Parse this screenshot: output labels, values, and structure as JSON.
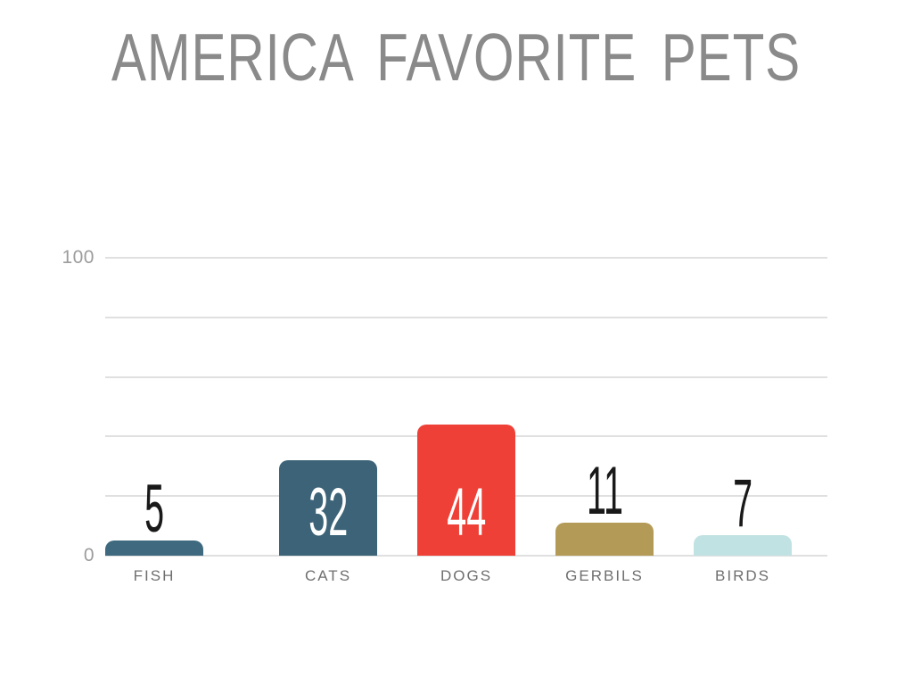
{
  "title": {
    "text": "AMERICA FAVORITE PETS",
    "color": "#8a8a8a"
  },
  "axis": {
    "top_label": "100",
    "bottom_label": "0"
  },
  "chart_data": {
    "type": "bar",
    "title": "AMERICA FAVORITE PETS",
    "categories": [
      "CATS",
      "DOGS",
      "GERBILS",
      "BIRDS",
      "FISH"
    ],
    "values": [
      32,
      44,
      11,
      7,
      5
    ],
    "bar_colors": [
      "#3c6377",
      "#ee4036",
      "#b49a57",
      "#c1e2e3",
      "#3e697e"
    ],
    "value_label_positions": [
      "inside",
      "inside",
      "above",
      "above",
      "above"
    ],
    "value_label_colors": [
      "#ffffff",
      "#ffffff",
      "#191919",
      "#191919",
      "#191919"
    ],
    "xlabel": "",
    "ylabel": "",
    "ylim": [
      0,
      100
    ],
    "gridlines": [
      0,
      20,
      40,
      60,
      80,
      100
    ],
    "ytick_labels": [
      "0",
      "100"
    ],
    "legend": "none",
    "grid": "horizontal"
  }
}
